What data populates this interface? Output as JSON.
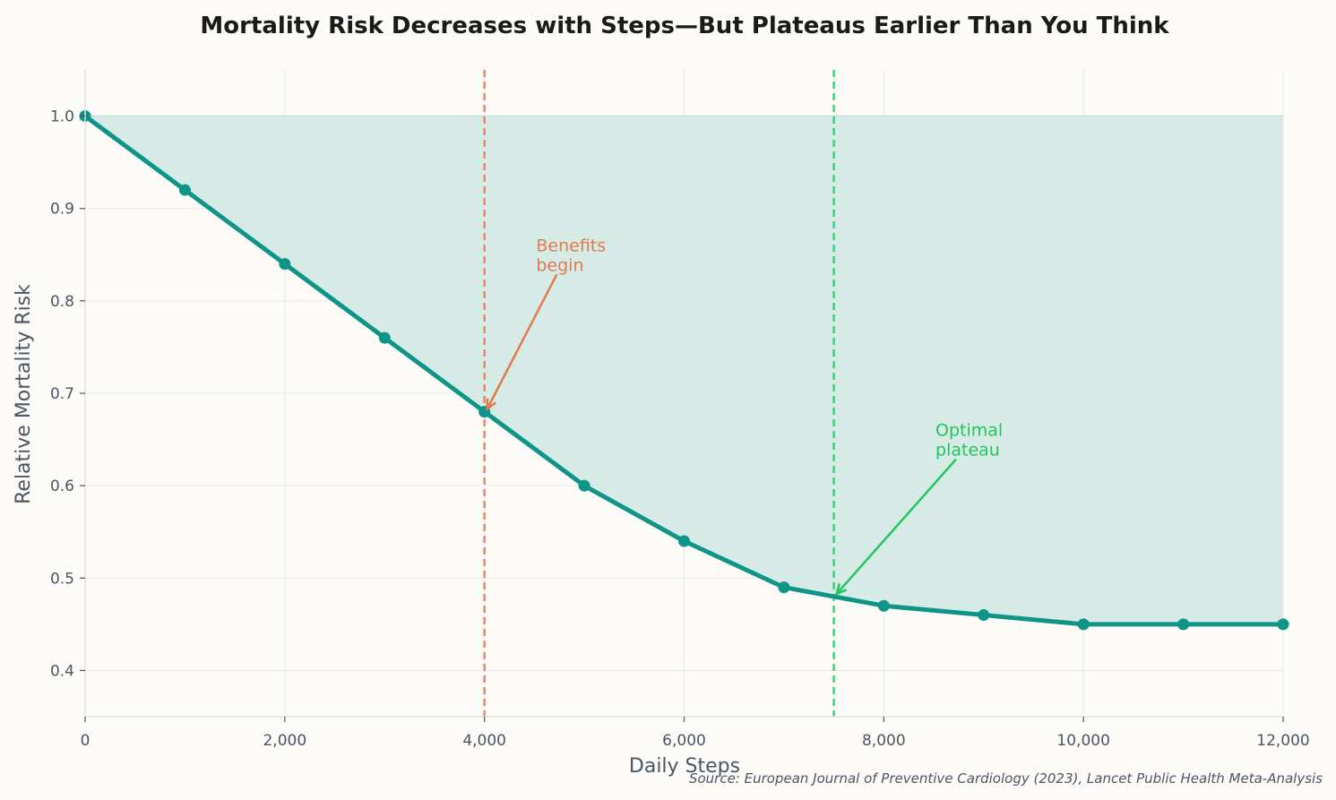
{
  "chart_data": {
    "type": "line",
    "title": "Mortality Risk Decreases with Steps—But Plateaus Earlier Than You Think",
    "xlabel": "Daily Steps",
    "ylabel": "Relative Mortality Risk",
    "source": "Source: European Journal of Preventive Cardiology (2023), Lancet Public Health Meta-Analysis",
    "x": [
      0,
      1000,
      2000,
      3000,
      4000,
      5000,
      6000,
      7000,
      8000,
      9000,
      10000,
      11000,
      12000
    ],
    "series": [
      {
        "values": [
          1.0,
          0.92,
          0.84,
          0.76,
          0.68,
          0.6,
          0.54,
          0.49,
          0.47,
          0.46,
          0.45,
          0.45,
          0.45
        ],
        "color": "#0f9488"
      }
    ],
    "fill_to": 1.0,
    "fill_color": "#d6ebe6",
    "xlim": [
      0,
      12000
    ],
    "ylim": [
      0.35,
      1.05
    ],
    "xticks": [
      0,
      2000,
      4000,
      6000,
      8000,
      10000,
      12000
    ],
    "xtick_labels": [
      "0",
      "2,000",
      "4,000",
      "6,000",
      "8,000",
      "10,000",
      "12,000"
    ],
    "yticks": [
      0.4,
      0.5,
      0.6,
      0.7,
      0.8,
      0.9,
      1.0
    ],
    "ytick_labels": [
      "0.4",
      "0.5",
      "0.6",
      "0.7",
      "0.8",
      "0.9",
      "1.0"
    ],
    "grid": true,
    "vlines": [
      {
        "x": 4000,
        "color": "#e8896a",
        "style": "dashed"
      },
      {
        "x": 7500,
        "color": "#3ad47a",
        "style": "dashed"
      }
    ],
    "annotations": [
      {
        "lines": [
          "Benefits",
          "begin"
        ],
        "text_x": 4500,
        "text_y": 0.85,
        "point_x": 4000,
        "point_y": 0.68,
        "color": "#e07a4f"
      },
      {
        "lines": [
          "Optimal",
          "plateau"
        ],
        "text_x": 8500,
        "text_y": 0.65,
        "point_x": 7500,
        "point_y": 0.48,
        "color": "#22c55e"
      }
    ]
  }
}
